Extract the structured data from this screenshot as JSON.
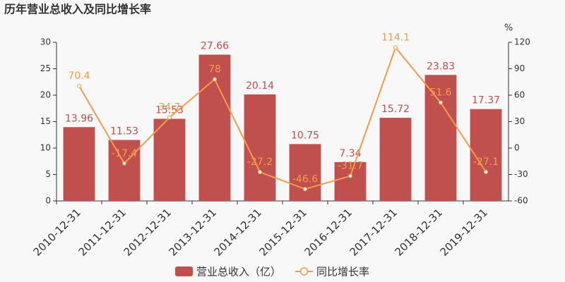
{
  "chart_data": {
    "type": "bar",
    "title": "历年营业总收入及同比增长率",
    "y2label": "%",
    "categories": [
      "2010-12-31",
      "2011-12-31",
      "2012-12-31",
      "2013-12-31",
      "2014-12-31",
      "2015-12-31",
      "2016-12-31",
      "2017-12-31",
      "2018-12-31",
      "2019-12-31"
    ],
    "series": [
      {
        "name": "营业总收入（亿）",
        "type": "bar",
        "color": "#c0504d",
        "axis": "y",
        "values": [
          13.96,
          11.53,
          15.53,
          27.66,
          20.14,
          10.75,
          7.34,
          15.72,
          23.83,
          17.37
        ]
      },
      {
        "name": "同比增长率",
        "type": "line",
        "color": "#f39c4a",
        "axis": "y2",
        "values": [
          70.4,
          -17.4,
          34.7,
          78,
          -27.2,
          -46.6,
          -31.7,
          114.1,
          51.6,
          -27.1
        ]
      }
    ],
    "ylim": [
      0,
      30
    ],
    "yticks": [
      0,
      5,
      10,
      15,
      20,
      25,
      30
    ],
    "y2lim": [
      -60,
      120
    ],
    "y2ticks": [
      -60,
      -30,
      0,
      30,
      60,
      90,
      120
    ],
    "grid": false
  }
}
